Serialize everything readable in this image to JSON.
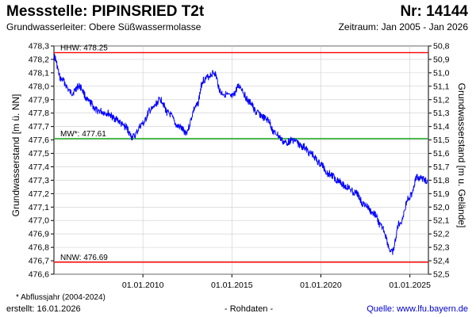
{
  "header": {
    "title": "Messstelle: PIPINSRIED T2t",
    "nr": "Nr: 14144",
    "aquifer": "Grundwasserleiter:   Obere Süßwassermolasse",
    "period": "Zeitraum: Jan 2005 - Jan 2026"
  },
  "footer": {
    "footnote": "* Abflussjahr (2004-2024)",
    "created": "erstellt:  16.01.2026",
    "raw": "- Rohdaten -",
    "source": "Quelle: www.lfu.bayern.de"
  },
  "colors": {
    "series": "#0000ff",
    "extreme_lines": "#ff0000",
    "mean_line": "#00a000",
    "grid": "#cccccc"
  },
  "chart_data": {
    "type": "line",
    "xlabel": "",
    "ylabel": "Grundwasserstand [m ü. NN]",
    "y2label": "Grundwasserstand [m u. Gelände]",
    "xlim": [
      "2005-01-01",
      "2026-01-16"
    ],
    "ylim": [
      476.6,
      478.3
    ],
    "y2lim": [
      52.5,
      50.8
    ],
    "xticks": [
      "01.01.2010",
      "01.01.2015",
      "01.01.2020",
      "01.01.2025"
    ],
    "yticks": [
      "478,3",
      "478,2",
      "478,1",
      "478,0",
      "477,9",
      "477,8",
      "477,7",
      "477,6",
      "477,5",
      "477,4",
      "477,3",
      "477,2",
      "477,1",
      "477,0",
      "476,9",
      "476,8",
      "476,7",
      "476,6"
    ],
    "y2ticks": [
      "50,8",
      "50,9",
      "51,0",
      "51,1",
      "51,2",
      "51,3",
      "51,4",
      "51,5",
      "51,6",
      "51,7",
      "51,8",
      "51,9",
      "52,0",
      "52,1",
      "52,2",
      "52,3",
      "52,4",
      "52,5"
    ],
    "reference_lines": [
      {
        "label": "HHW: 478.25",
        "value": 478.25,
        "color": "#ff0000"
      },
      {
        "label": "MW*: 477.61",
        "value": 477.61,
        "color": "#00a000"
      },
      {
        "label": "NNW: 476.69",
        "value": 476.69,
        "color": "#ff0000"
      }
    ],
    "grid": true,
    "series": [
      {
        "x": [
          "2005-01",
          "2005-06",
          "2006-01",
          "2006-06",
          "2007-01",
          "2007-06",
          "2008-01",
          "2008-06",
          "2009-01",
          "2009-06",
          "2010-01",
          "2010-06",
          "2011-01",
          "2011-06",
          "2012-01",
          "2012-06",
          "2013-01",
          "2013-06",
          "2014-01",
          "2014-06",
          "2015-01",
          "2015-06",
          "2016-01",
          "2016-06",
          "2017-01",
          "2017-06",
          "2018-01",
          "2018-06",
          "2019-01",
          "2019-06",
          "2020-01",
          "2020-06",
          "2021-01",
          "2021-06",
          "2022-01",
          "2022-06",
          "2023-01",
          "2023-06",
          "2024-01",
          "2024-06",
          "2025-01",
          "2025-06",
          "2026-01"
        ],
        "y": [
          478.22,
          478.05,
          477.95,
          478.0,
          477.88,
          477.82,
          477.8,
          477.76,
          477.7,
          477.62,
          477.72,
          477.82,
          477.9,
          477.8,
          477.7,
          477.66,
          477.85,
          478.05,
          478.1,
          477.95,
          477.92,
          478.0,
          477.88,
          477.8,
          477.75,
          477.65,
          477.58,
          477.6,
          477.55,
          477.5,
          477.42,
          477.35,
          477.3,
          477.25,
          477.2,
          477.12,
          477.05,
          476.95,
          476.76,
          476.98,
          477.18,
          477.32,
          477.3
        ]
      }
    ]
  }
}
